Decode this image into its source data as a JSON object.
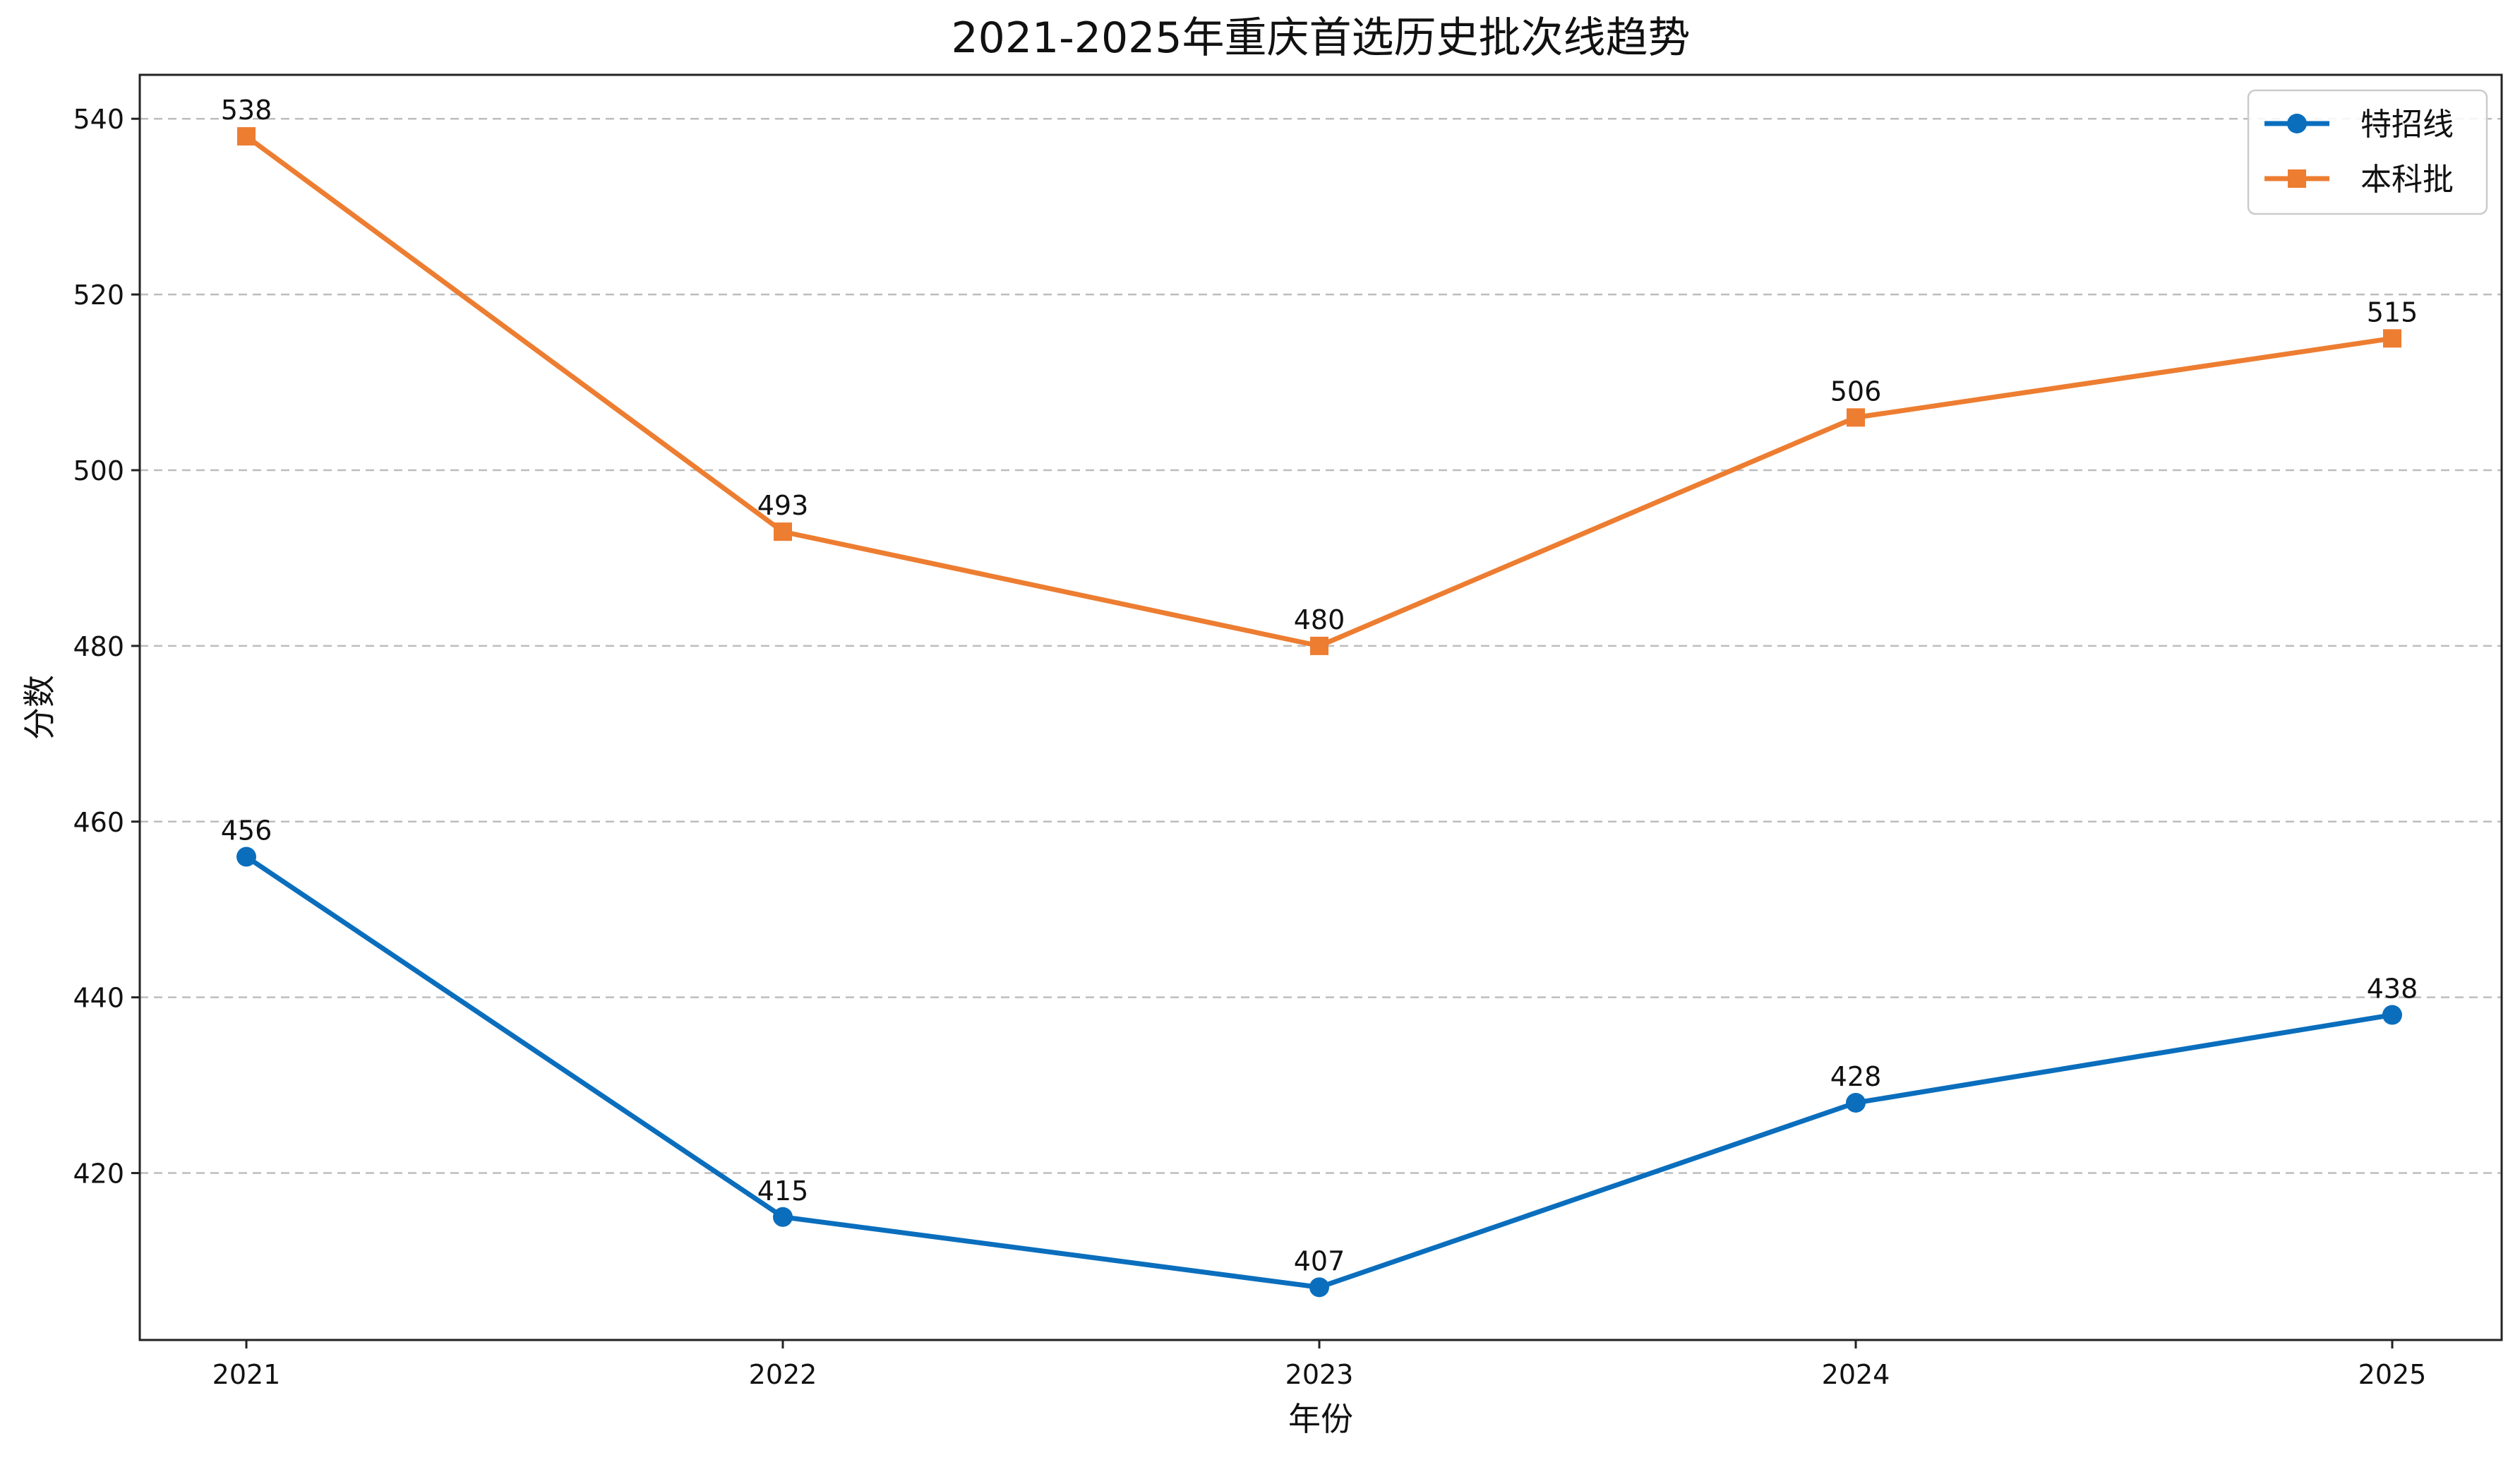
{
  "chart_data": {
    "type": "line",
    "title": "2021-2025年重庆首选历史批次线趋势",
    "xlabel": "年份",
    "ylabel": "分数",
    "categories": [
      "2021",
      "2022",
      "2023",
      "2024",
      "2025"
    ],
    "series": [
      {
        "name": "特招线",
        "values": [
          456,
          415,
          407,
          428,
          438
        ],
        "color": "#0a6ebd",
        "marker": "circle"
      },
      {
        "name": "本科批",
        "values": [
          538,
          493,
          480,
          506,
          515
        ],
        "color": "#ed7d31",
        "marker": "square"
      }
    ],
    "ylim": [
      401,
      545
    ],
    "yticks": [
      420,
      440,
      460,
      480,
      500,
      520,
      540
    ],
    "grid": "y-dashed",
    "legend": "top-right"
  }
}
